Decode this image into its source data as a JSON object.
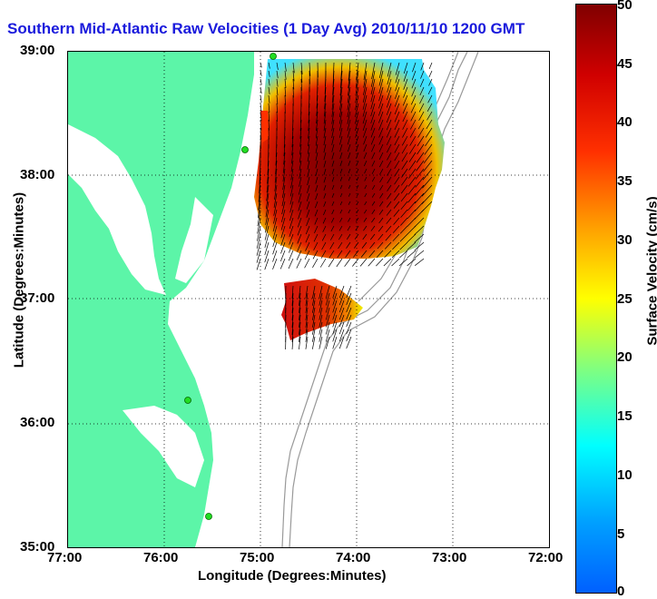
{
  "title": "Southern Mid-Atlantic Raw Velocities (1 Day Avg) 2010/11/10 1200 GMT",
  "x_axis": {
    "label": "Longitude (Degrees:Minutes)",
    "ticks": [
      "77:00",
      "76:00",
      "75:00",
      "74:00",
      "73:00",
      "72:00"
    ]
  },
  "y_axis": {
    "label": "Latitude (Degrees:Minutes)",
    "ticks": [
      "39:00",
      "38:00",
      "37:00",
      "36:00",
      "35:00"
    ]
  },
  "colorbar": {
    "label": "Surface Velocity (cm/s)",
    "ticks": [
      "50",
      "45",
      "40",
      "35",
      "30",
      "25",
      "20",
      "15",
      "10",
      "5",
      "0"
    ],
    "range": [
      0,
      50
    ]
  },
  "colors": {
    "land": "#5cf5a8",
    "title": "#1a1adc",
    "bathymetry": "#999999",
    "station": "#22dd22"
  }
}
